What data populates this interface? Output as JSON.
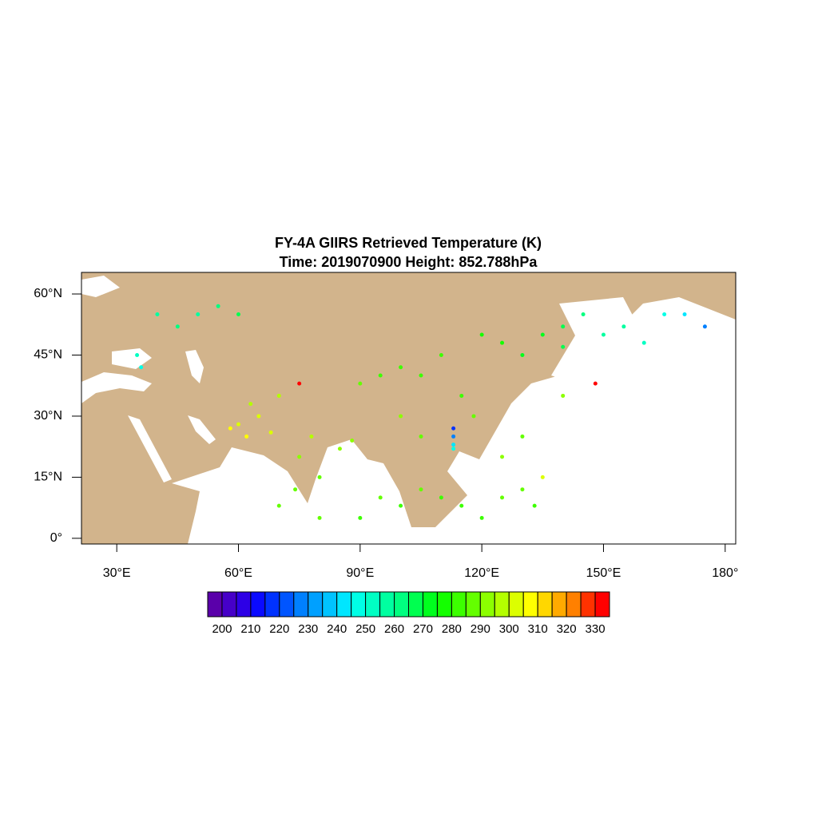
{
  "chart_data": {
    "type": "scatter",
    "title": "FY-4A GIIRS Retrieved Temperature (K)",
    "subtitle": "Time: 2019070900  Height: 852.788hPa",
    "xlim": [
      21.3,
      182.6
    ],
    "ylim": [
      -1.4,
      65.3
    ],
    "xticks": [
      {
        "value": 30,
        "label": "30°E"
      },
      {
        "value": 60,
        "label": "60°E"
      },
      {
        "value": 90,
        "label": "90°E"
      },
      {
        "value": 120,
        "label": "120°E"
      },
      {
        "value": 150,
        "label": "150°E"
      },
      {
        "value": 180,
        "label": "180°"
      }
    ],
    "yticks": [
      {
        "value": 0,
        "label": "0°"
      },
      {
        "value": 15,
        "label": "15°N"
      },
      {
        "value": 30,
        "label": "30°N"
      },
      {
        "value": 45,
        "label": "45°N"
      },
      {
        "value": 60,
        "label": "60°N"
      }
    ],
    "x": [
      60,
      65,
      62,
      68,
      63,
      70,
      58,
      75,
      80,
      78,
      85,
      74,
      88,
      90,
      95,
      100,
      105,
      110,
      100,
      105,
      115,
      118,
      120,
      125,
      130,
      135,
      140,
      145,
      140,
      150,
      155,
      160,
      165,
      170,
      175,
      113,
      113,
      113,
      113,
      40,
      50,
      55,
      60,
      45,
      35,
      36,
      95,
      100,
      105,
      110,
      115,
      120,
      125,
      130,
      133,
      90,
      80,
      70,
      140,
      130,
      125,
      135,
      75,
      148
    ],
    "y": [
      28,
      30,
      25,
      26,
      33,
      35,
      27,
      20,
      15,
      25,
      22,
      12,
      24,
      38,
      40,
      42,
      40,
      45,
      30,
      25,
      35,
      30,
      50,
      48,
      45,
      50,
      52,
      55,
      47,
      50,
      52,
      48,
      55,
      55,
      52,
      25,
      27,
      23,
      22,
      55,
      55,
      57,
      55,
      52,
      45,
      42,
      10,
      8,
      12,
      10,
      8,
      5,
      10,
      12,
      8,
      5,
      5,
      8,
      35,
      25,
      20,
      15,
      38,
      38
    ],
    "values": [
      300,
      302,
      305,
      300,
      298,
      295,
      305,
      292,
      288,
      296,
      290,
      286,
      293,
      285,
      283,
      282,
      284,
      280,
      290,
      288,
      282,
      286,
      278,
      275,
      272,
      270,
      265,
      262,
      268,
      258,
      255,
      250,
      245,
      240,
      225,
      225,
      215,
      240,
      245,
      255,
      258,
      262,
      265,
      260,
      250,
      248,
      285,
      283,
      286,
      284,
      283,
      282,
      287,
      288,
      284,
      280,
      285,
      288,
      290,
      289,
      292,
      300,
      330,
      330
    ],
    "colorbar": {
      "levels": [
        200,
        205,
        210,
        215,
        220,
        225,
        230,
        235,
        240,
        245,
        250,
        255,
        260,
        265,
        270,
        275,
        280,
        285,
        290,
        295,
        300,
        305,
        310,
        315,
        320,
        325,
        330
      ],
      "ticks": [
        200,
        210,
        220,
        230,
        240,
        250,
        260,
        270,
        280,
        290,
        300,
        310,
        320,
        330
      ],
      "colors": [
        "#5a00aa",
        "#4600c8",
        "#2d00e6",
        "#0a0aff",
        "#0032ff",
        "#0055ff",
        "#0080ff",
        "#00a0ff",
        "#00c3ff",
        "#00e6ff",
        "#00ffe6",
        "#00ffc3",
        "#00ffa0",
        "#00ff80",
        "#00ff50",
        "#00ff1e",
        "#14ff00",
        "#3cff00",
        "#64ff00",
        "#8cff00",
        "#b4ff00",
        "#dcff00",
        "#ffff00",
        "#ffd700",
        "#ffaa00",
        "#ff8000",
        "#ff3200",
        "#ff0000"
      ]
    }
  }
}
